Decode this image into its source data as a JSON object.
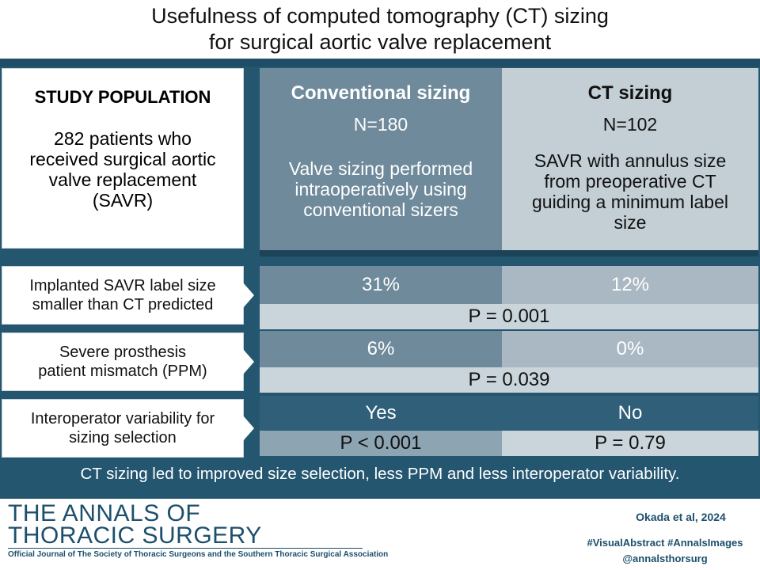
{
  "title": {
    "line1": "Usefulness of computed tomography (CT) sizing",
    "line2": "for surgical aortic valve replacement"
  },
  "population": {
    "heading": "STUDY POPULATION",
    "lines": [
      "282 patients who",
      "received surgical aortic",
      "valve replacement",
      "(SAVR)"
    ]
  },
  "conventional": {
    "title": "Conventional sizing",
    "n": "N=180",
    "desc_lines": [
      "Valve sizing performed",
      "intraoperatively using",
      "conventional sizers"
    ]
  },
  "ct": {
    "title": "CT sizing",
    "n": "N=102",
    "desc_lines": [
      "SAVR with annulus size",
      "from preoperative CT",
      "guiding a minimum label",
      "size"
    ]
  },
  "outcomes": [
    {
      "label_lines": [
        "Implanted SAVR  label size",
        "smaller than CT predicted"
      ],
      "conventional": "31%",
      "ct": "12%",
      "p": "P = 0.001"
    },
    {
      "label_lines": [
        "Severe prosthesis",
        "patient mismatch (PPM)"
      ],
      "conventional": "6%",
      "ct": "0%",
      "p": "P = 0.039"
    },
    {
      "label_lines": [
        "Interoperator variability for",
        "sizing selection"
      ],
      "conventional": "Yes",
      "ct": "No",
      "p_conventional": "P < 0.001",
      "p_ct": "P = 0.79"
    }
  ],
  "conclusion": "CT sizing led to improved size selection, less PPM and less interoperator variability.",
  "footer": {
    "logo_line1": "THE ANNALS OF",
    "logo_line2": "THORACIC SURGERY",
    "logo_sub": "Official Journal of The Society of Thoracic Surgeons and the Southern Thoracic Surgical Association",
    "citation": "Okada et al, 2024",
    "hashtags": "#VisualAbstract #AnnalsImages",
    "handle": "@annalsthorsurg"
  },
  "colors": {
    "band": "#245670",
    "conventional_column": "#6e8a9b",
    "ct_column": "#c3ced5",
    "p_value_row": "#c9d4db",
    "brand": "#1d4f6c"
  }
}
